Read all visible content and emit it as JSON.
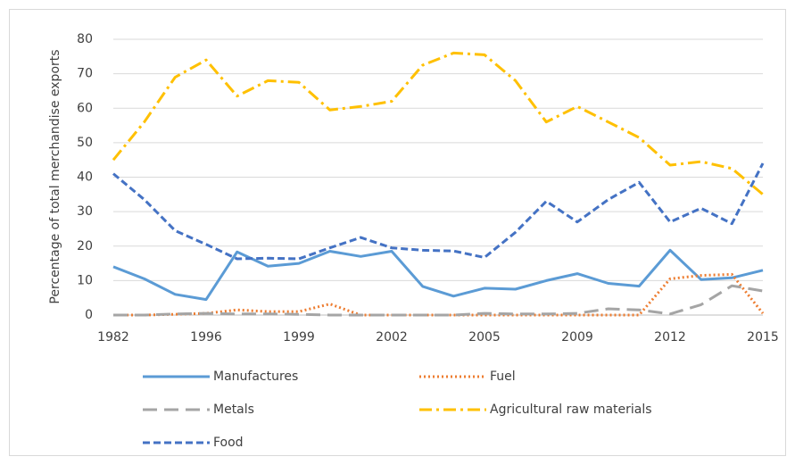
{
  "chart_data": {
    "type": "line",
    "y_label": "Percentage of total merchandise exports",
    "categories": [
      "1982",
      null,
      null,
      "1996",
      null,
      null,
      "1999",
      null,
      null,
      "2002",
      null,
      null,
      "2005",
      null,
      null,
      "2009",
      null,
      null,
      "2012",
      null,
      null,
      "2015"
    ],
    "series": [
      {
        "name": "Manufactures",
        "color": "#5b9bd5",
        "dash": "solid",
        "values": [
          14,
          10.5,
          6,
          4.5,
          18.3,
          14.2,
          15,
          18.5,
          17,
          18.5,
          8.3,
          5.5,
          7.8,
          7.5,
          10,
          12,
          9.2,
          8.4,
          18.8,
          10.3,
          10.8,
          13
        ]
      },
      {
        "name": "Fuel",
        "color": "#ed7d31",
        "dash": "dotted",
        "values": [
          0,
          0,
          0.2,
          0.5,
          1.5,
          1,
          1,
          3.2,
          0,
          0,
          0,
          0,
          0,
          0,
          0,
          0,
          0,
          0,
          10.5,
          11.5,
          11.8,
          0.5
        ]
      },
      {
        "name": "Metals",
        "color": "#a5a5a5",
        "dash": "long-dash",
        "values": [
          0,
          0,
          0.3,
          0.5,
          0.3,
          0.3,
          0.2,
          0,
          0,
          0,
          0,
          0,
          0.5,
          0.3,
          0.3,
          0.5,
          1.8,
          1.5,
          0.3,
          3,
          8.5,
          7
        ]
      },
      {
        "name": "Agricultural raw materials",
        "color": "#ffc000",
        "dash": "dash-dot",
        "values": [
          45,
          56,
          69,
          74,
          63.5,
          68,
          67.5,
          59.5,
          60.5,
          62,
          72.5,
          76,
          75.5,
          68,
          56,
          60.5,
          56,
          51.5,
          43.5,
          44.5,
          42.5,
          35
        ]
      },
      {
        "name": "Food",
        "color": "#4472c4",
        "dash": "dashed",
        "values": [
          41,
          33.5,
          24.5,
          20.5,
          16.3,
          16.5,
          16.3,
          19.5,
          22.5,
          19.5,
          18.8,
          18.6,
          16.7,
          24,
          33,
          27,
          33.5,
          38.5,
          27,
          31,
          26.5,
          44
        ]
      }
    ],
    "ylim": [
      0,
      80
    ],
    "yticks": [
      0,
      10,
      20,
      30,
      40,
      50,
      60,
      70,
      80
    ],
    "grid": true,
    "legend": "bottom"
  }
}
